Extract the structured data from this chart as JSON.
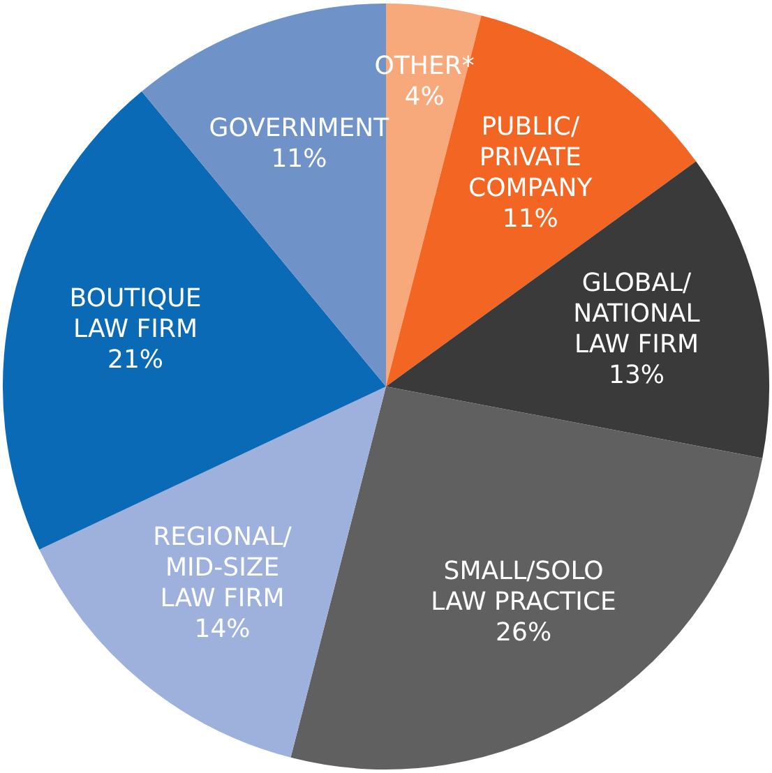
{
  "chart_data": {
    "type": "pie",
    "categories": [
      "OTHER*",
      "PUBLIC/\nPRIVATE\nCOMPANY",
      "GLOBAL/\nNATIONAL\nLAW FIRM",
      "SMALL/SOLO\nLAW PRACTICE",
      "REGIONAL/\nMID-SIZE\nLAW FIRM",
      "BOUTIQUE\nLAW FIRM",
      "GOVERNMENT"
    ],
    "values": [
      4,
      11,
      13,
      26,
      14,
      21,
      11
    ],
    "value_labels": [
      "4%",
      "11%",
      "13%",
      "26%",
      "14%",
      "21%",
      "11%"
    ],
    "colors": [
      "#f8a97c",
      "#f26522",
      "#3a3a3a",
      "#606060",
      "#9eb1dc",
      "#0a6ab5",
      "#6f93c9"
    ],
    "legend": false
  }
}
